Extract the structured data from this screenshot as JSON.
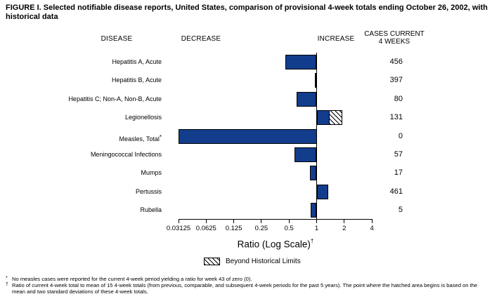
{
  "figure": {
    "title": "FIGURE I. Selected notifiable disease reports, United States, comparison of provisional 4-week totals ending October 26, 2002, with historical data"
  },
  "columns": {
    "disease": "DISEASE",
    "decrease": "DECREASE",
    "increase": "INCREASE",
    "cases_line1": "CASES CURRENT",
    "cases_line2": "4 WEEKS"
  },
  "chart_data": {
    "type": "bar",
    "orientation": "horizontal",
    "x_scale": "log2",
    "xlabel": "Ratio (Log Scale)",
    "xlabel_footnote_mark": "†",
    "xlim": [
      0.03125,
      4
    ],
    "xticks": [
      "0.03125",
      "0.0625",
      "0.125",
      "0.25",
      "0.5",
      "1",
      "2",
      "4"
    ],
    "baseline_ratio": 1,
    "rows": [
      {
        "disease": "Hepatitis A, Acute",
        "cases_current_4_weeks": 456,
        "ratio": 0.46,
        "bar": {
          "from": 0.46,
          "to": 1
        }
      },
      {
        "disease": "Hepatitis B, Acute",
        "cases_current_4_weeks": 397,
        "ratio": 0.95,
        "bar": {
          "from": 0.95,
          "to": 1
        }
      },
      {
        "disease": "Hepatitis C; Non-A, Non-B, Acute",
        "cases_current_4_weeks": 80,
        "ratio": 0.61,
        "bar": {
          "from": 0.61,
          "to": 1
        }
      },
      {
        "disease": "Legionellosis",
        "cases_current_4_weeks": 131,
        "ratio": 1.9,
        "bar": {
          "from": 1,
          "to": 1.38
        },
        "hatch": {
          "from": 1.38,
          "to": 1.9
        },
        "beyond_historical_limits": true
      },
      {
        "disease": "Measles, Total",
        "footnote_mark": "*",
        "cases_current_4_weeks": 0,
        "ratio": 0,
        "bar": {
          "from": 0.03125,
          "to": 1
        }
      },
      {
        "disease": "Meningococcal Infections",
        "cases_current_4_weeks": 57,
        "ratio": 0.57,
        "bar": {
          "from": 0.57,
          "to": 1
        }
      },
      {
        "disease": "Mumps",
        "cases_current_4_weeks": 17,
        "ratio": 0.85,
        "bar": {
          "from": 0.85,
          "to": 1
        }
      },
      {
        "disease": "Pertussis",
        "cases_current_4_weeks": 461,
        "ratio": 1.34,
        "bar": {
          "from": 1,
          "to": 1.34
        }
      },
      {
        "disease": "Rubella",
        "cases_current_4_weeks": 5,
        "ratio": 0.86,
        "bar": {
          "from": 0.86,
          "to": 1
        }
      }
    ],
    "legend": [
      {
        "swatch": "hatched",
        "label": "Beyond Historical Limits"
      }
    ],
    "colors": {
      "bar_fill": "#123d8d",
      "bar_border": "#000000",
      "hatch_fg": "#000000",
      "hatch_bg": "#ffffff"
    }
  },
  "footnotes": [
    {
      "mark": "*",
      "text": "No measles cases were reported for the current 4-week period yielding a ratio for week 43 of zero (0)."
    },
    {
      "mark": "†",
      "text": "Ratio of current 4-week total to mean of 15 4-week totals (from previous, comparable, and subsequent 4-week periods for the past 5 years). The point where the hatched area begins is based on the mean and two standard deviations of these 4-week totals."
    }
  ]
}
